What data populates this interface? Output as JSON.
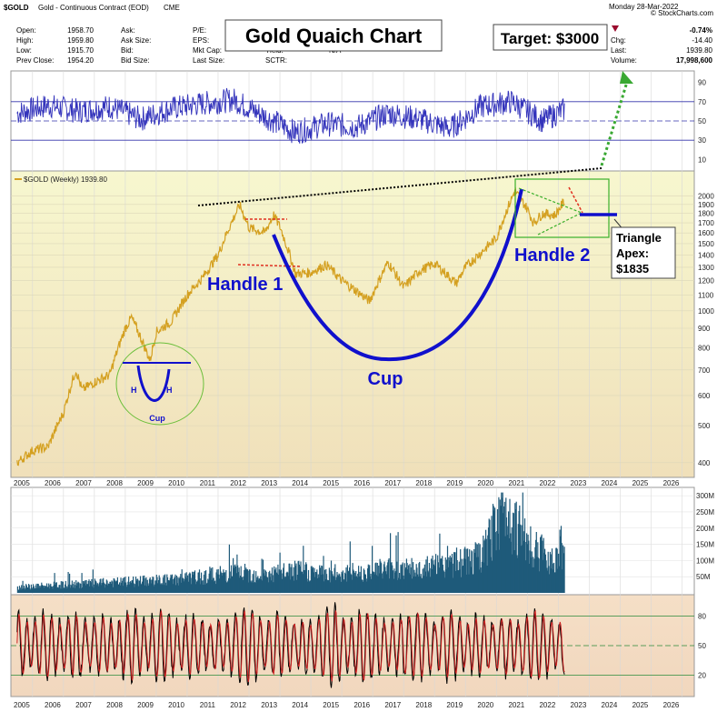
{
  "header": {
    "symbol": "$GOLD",
    "name": "Gold - Continuous Contract (EOD)",
    "exchange": "CME",
    "date": "Monday  28-Mar-2022",
    "site": "© StockCharts.com",
    "quote_labels": [
      "Open:",
      "High:",
      "Low:",
      "Prev Close:"
    ],
    "quote_values": [
      "1958.70",
      "1959.80",
      "1915.70",
      "1954.20"
    ],
    "col2_labels": [
      "Ask:",
      "Ask Size:",
      "Bid:",
      "Bid Size:"
    ],
    "col3_labels": [
      "P/E:",
      "EPS:",
      "Mkt Cap:",
      "Last Size:"
    ],
    "col4_labels": [
      "",
      "",
      "Yield:",
      "SCTR:"
    ],
    "yield_value": "N/A",
    "right_labels": [
      "Chg:",
      "Last:",
      "Volume:"
    ],
    "right_values": [
      "-14.40",
      "1939.80",
      "17,998,600"
    ],
    "pct_change": "-0.74%",
    "change_color": "#9b0a2e"
  },
  "annotations": {
    "title": "Gold Quaich Chart",
    "target": "Target: $3000",
    "handle1": "Handle 1",
    "handle2": "Handle 2",
    "cup": "Cup",
    "small_cup": "Cup",
    "small_h_left": "H",
    "small_h_right": "H",
    "triangle_line1": "Triangle",
    "triangle_line2": "Apex:",
    "triangle_line3": "$1835"
  },
  "colors": {
    "price_line": "#d4a020",
    "cup_curve": "#1010cc",
    "rsi_line": "#3333bb",
    "volume_bar": "#1f5a7a",
    "stoch_k": "#000000",
    "stoch_d": "#cc2020",
    "price_bg_top": "#f5f5c8",
    "price_bg_bottom": "#f0e0b8"
  },
  "chart_data": [
    {
      "type": "line",
      "panel": "RSI",
      "y_ticks": [
        90,
        70,
        50,
        30,
        10
      ],
      "ylim": [
        0,
        100
      ],
      "x": [
        2004.5,
        2005.5,
        2006.5,
        2007.5,
        2008.5,
        2009.5,
        2010.5,
        2011.5,
        2012.5,
        2013.5,
        2014.5,
        2015.5,
        2016.5,
        2017.5,
        2018.5,
        2019.5,
        2020.5,
        2021.5,
        2022.2
      ],
      "values": [
        58,
        66,
        60,
        65,
        52,
        63,
        68,
        72,
        55,
        38,
        47,
        44,
        58,
        52,
        42,
        65,
        70,
        50,
        62
      ]
    },
    {
      "type": "line",
      "panel": "price",
      "legend": "$GOLD (Weekly) 1939.80",
      "y_scale": "log",
      "y_ticks": [
        2000,
        1900,
        1800,
        1700,
        1600,
        1500,
        1400,
        1300,
        1200,
        1100,
        1000,
        900,
        800,
        700,
        600,
        500,
        400
      ],
      "ylim": [
        370,
        2300
      ],
      "x": [
        2004.5,
        2005.0,
        2005.5,
        2006.0,
        2006.4,
        2006.6,
        2007.0,
        2007.5,
        2008.0,
        2008.2,
        2008.8,
        2009.0,
        2009.5,
        2010.0,
        2010.5,
        2011.0,
        2011.7,
        2012.0,
        2012.5,
        2012.8,
        2013.0,
        2013.5,
        2014.0,
        2014.5,
        2015.0,
        2015.9,
        2016.5,
        2017.0,
        2017.5,
        2018.0,
        2018.7,
        2019.0,
        2019.5,
        2020.0,
        2020.6,
        2021.0,
        2021.2,
        2021.5,
        2021.9,
        2022.2
      ],
      "values": [
        400,
        430,
        440,
        540,
        700,
        620,
        650,
        680,
        900,
        960,
        740,
        880,
        940,
        1100,
        1220,
        1400,
        1890,
        1650,
        1600,
        1780,
        1660,
        1250,
        1260,
        1320,
        1200,
        1060,
        1340,
        1150,
        1270,
        1330,
        1180,
        1300,
        1420,
        1550,
        2060,
        1850,
        1700,
        1800,
        1780,
        1940
      ]
    },
    {
      "type": "bar",
      "panel": "volume",
      "y_ticks": [
        "300M",
        "250M",
        "200M",
        "150M",
        "100M",
        "50M"
      ],
      "ylim": [
        0,
        320
      ],
      "x": [
        2004.5,
        2005.5,
        2006.5,
        2007.5,
        2008.5,
        2009.5,
        2010.5,
        2011.5,
        2012.5,
        2013.5,
        2014.5,
        2015.5,
        2016.5,
        2017.5,
        2018.5,
        2019.5,
        2020.3,
        2021.0,
        2021.8,
        2022.2
      ],
      "values": [
        20,
        25,
        30,
        35,
        40,
        45,
        55,
        70,
        60,
        75,
        65,
        70,
        85,
        80,
        100,
        120,
        300,
        160,
        120,
        170
      ]
    },
    {
      "type": "line",
      "panel": "oscillator",
      "y_ticks": [
        80,
        50,
        20
      ],
      "ylim": [
        0,
        100
      ],
      "series": [
        {
          "values": [
            80,
            20,
            75,
            30,
            85,
            15,
            70,
            40,
            90,
            25,
            60,
            10,
            85,
            45,
            20,
            80,
            30,
            70,
            15,
            65
          ]
        },
        {
          "values": [
            70,
            30,
            65,
            40,
            75,
            25,
            65,
            45,
            80,
            30,
            55,
            20,
            75,
            50,
            30,
            70,
            35,
            65,
            25,
            60
          ]
        }
      ]
    }
  ],
  "x_axis": {
    "years": [
      "2005",
      "2006",
      "2007",
      "2008",
      "2009",
      "2010",
      "2011",
      "2012",
      "2013",
      "2014",
      "2015",
      "2016",
      "2017",
      "2018",
      "2019",
      "2020",
      "2021",
      "2022",
      "2023",
      "2024",
      "2025",
      "2026"
    ]
  }
}
